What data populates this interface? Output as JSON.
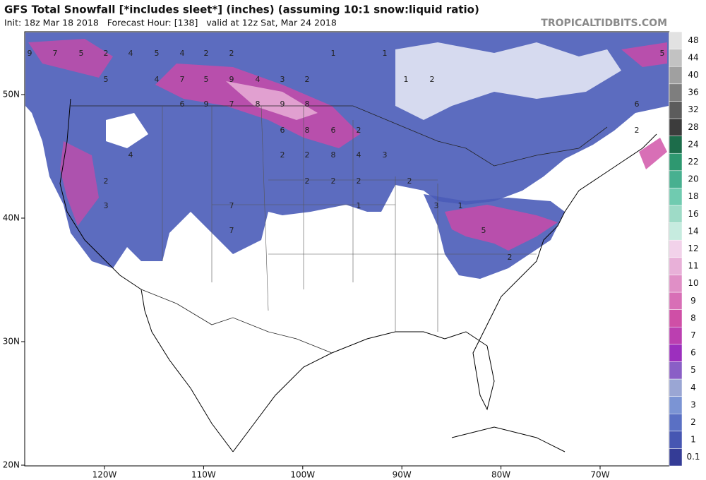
{
  "header": {
    "title": "GFS Total Snowfall [*includes sleet*] (inches) (assuming 10:1 snow:liquid ratio)",
    "subtitle": "Init: 18z Mar 18 2018   Forecast Hour: [138]   valid at 12z Sat, Mar 24 2018",
    "brand": "TROPICALTIDBITS.COM"
  },
  "axes": {
    "latitude_labels": [
      "50N",
      "40N",
      "30N",
      "20N"
    ],
    "longitude_labels": [
      "120W",
      "110W",
      "100W",
      "90W",
      "80W",
      "70W"
    ]
  },
  "colorbar": {
    "levels": [
      0.1,
      1,
      2,
      3,
      4,
      5,
      6,
      7,
      8,
      9,
      10,
      11,
      12,
      14,
      16,
      18,
      20,
      22,
      24,
      28,
      32,
      36,
      40,
      44,
      48
    ],
    "colors": [
      "#343c96",
      "#4656b2",
      "#5a70c4",
      "#7b94d4",
      "#9aa6d4",
      "#8a5fc6",
      "#9c2fbe",
      "#bb3fb0",
      "#cf4fa6",
      "#d86fb6",
      "#e08fc6",
      "#e8b0d8",
      "#f2d2ea",
      "#c6ebdf",
      "#9edbc7",
      "#70cbb0",
      "#48b090",
      "#2e9870",
      "#1c6c4a",
      "#3c3c3c",
      "#5c5c5c",
      "#7e7e7e",
      "#a0a0a0",
      "#c2c2c2",
      "#e2e2e2"
    ]
  },
  "map_labels": [
    "9",
    "7",
    "5",
    "2",
    "4",
    "5",
    "4",
    "2",
    "2",
    "5",
    "4",
    "7",
    "5",
    "9",
    "4",
    "3",
    "2",
    "6",
    "9",
    "7",
    "8",
    "9",
    "8",
    "6",
    "8",
    "6",
    "2",
    "2",
    "2",
    "8",
    "4",
    "3",
    "2",
    "2",
    "2",
    "2",
    "1",
    "3",
    "1",
    "5",
    "2",
    "6",
    "2",
    "5",
    "1",
    "1",
    "1",
    "2",
    "3",
    "2",
    "4",
    "7",
    "7"
  ]
}
